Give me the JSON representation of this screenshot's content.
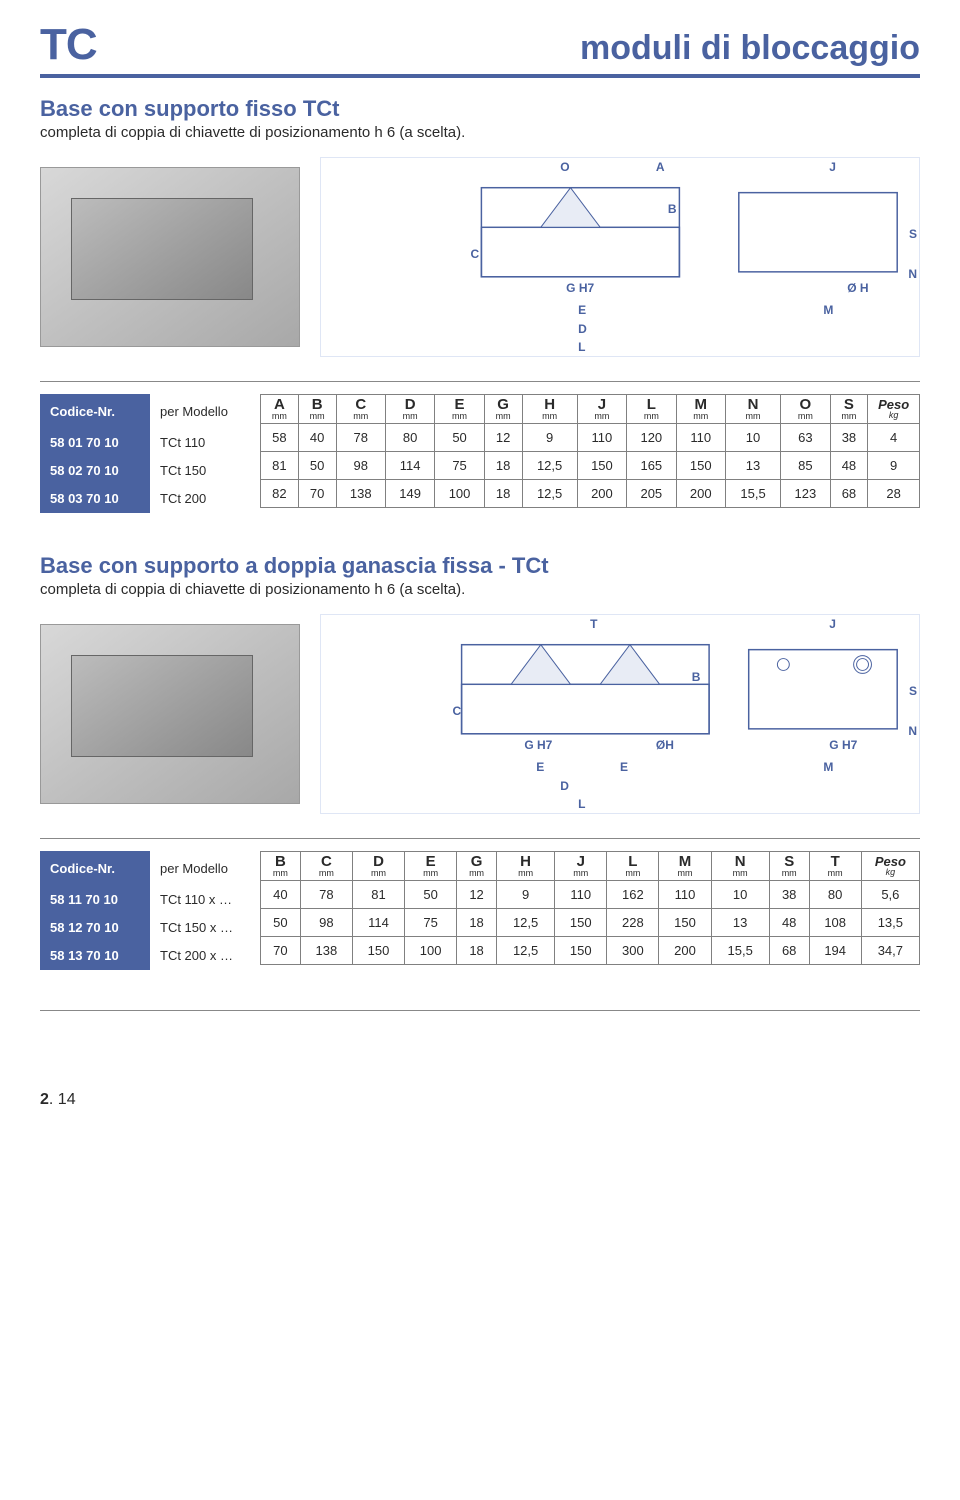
{
  "brand": "TC",
  "page_title": "moduli di bloccaggio",
  "page_number_bold": "2",
  "page_number_rest": ". 14",
  "section1": {
    "title": "Base con supporto fisso TCt",
    "subtitle": "completa di coppia di chiavette di posizionamento h 6 (a scelta).",
    "dim_labels": [
      "O",
      "A",
      "J",
      "C",
      "B",
      "G H7",
      "E",
      "D",
      "L",
      "Ø H",
      "M",
      "N",
      "S"
    ],
    "left_header_code": "Codice-Nr.",
    "left_header_model": "per Modello",
    "columns": [
      "A",
      "B",
      "C",
      "D",
      "E",
      "G",
      "H",
      "J",
      "L",
      "M",
      "N",
      "O",
      "S",
      "Peso"
    ],
    "units": [
      "mm",
      "mm",
      "mm",
      "mm",
      "mm",
      "mm",
      "mm",
      "mm",
      "mm",
      "mm",
      "mm",
      "mm",
      "mm",
      "kg"
    ],
    "rows": [
      {
        "code": "58 01 70 10",
        "model": "TCt 110",
        "vals": [
          "58",
          "40",
          "78",
          "80",
          "50",
          "12",
          "9",
          "110",
          "120",
          "110",
          "10",
          "63",
          "38",
          "4"
        ]
      },
      {
        "code": "58 02 70 10",
        "model": "TCt 150",
        "vals": [
          "81",
          "50",
          "98",
          "114",
          "75",
          "18",
          "12,5",
          "150",
          "165",
          "150",
          "13",
          "85",
          "48",
          "9"
        ]
      },
      {
        "code": "58 03 70 10",
        "model": "TCt 200",
        "vals": [
          "82",
          "70",
          "138",
          "149",
          "100",
          "18",
          "12,5",
          "200",
          "205",
          "200",
          "15,5",
          "123",
          "68",
          "28"
        ]
      }
    ]
  },
  "section2": {
    "title": "Base con supporto a  doppia ganascia fissa - TCt",
    "subtitle": "completa di coppia di chiavette di posizionamento h 6 (a scelta).",
    "dim_labels": [
      "T",
      "J",
      "C",
      "B",
      "G H7",
      "ØH",
      "G H7",
      "E",
      "E",
      "D",
      "L",
      "M",
      "N",
      "S"
    ],
    "left_header_code": "Codice-Nr.",
    "left_header_model": "per Modello",
    "columns": [
      "B",
      "C",
      "D",
      "E",
      "G",
      "H",
      "J",
      "L",
      "M",
      "N",
      "S",
      "T",
      "Peso"
    ],
    "units": [
      "mm",
      "mm",
      "mm",
      "mm",
      "mm",
      "mm",
      "mm",
      "mm",
      "mm",
      "mm",
      "mm",
      "mm",
      "kg"
    ],
    "rows": [
      {
        "code": "58 11 70 10",
        "model": "TCt 110 x …",
        "vals": [
          "40",
          "78",
          "81",
          "50",
          "12",
          "9",
          "110",
          "162",
          "110",
          "10",
          "38",
          "80",
          "5,6"
        ]
      },
      {
        "code": "58 12 70 10",
        "model": "TCt 150 x …",
        "vals": [
          "50",
          "98",
          "114",
          "75",
          "18",
          "12,5",
          "150",
          "228",
          "150",
          "13",
          "48",
          "108",
          "13,5"
        ]
      },
      {
        "code": "58 13 70 10",
        "model": "TCt 200 x …",
        "vals": [
          "70",
          "138",
          "150",
          "100",
          "18",
          "12,5",
          "150",
          "300",
          "200",
          "15,5",
          "68",
          "194",
          "34,7"
        ]
      }
    ]
  },
  "colors": {
    "accent": "#4a62a0",
    "border": "#808080",
    "text": "#2a2a2a",
    "drawing_border": "#dfe6f5"
  }
}
